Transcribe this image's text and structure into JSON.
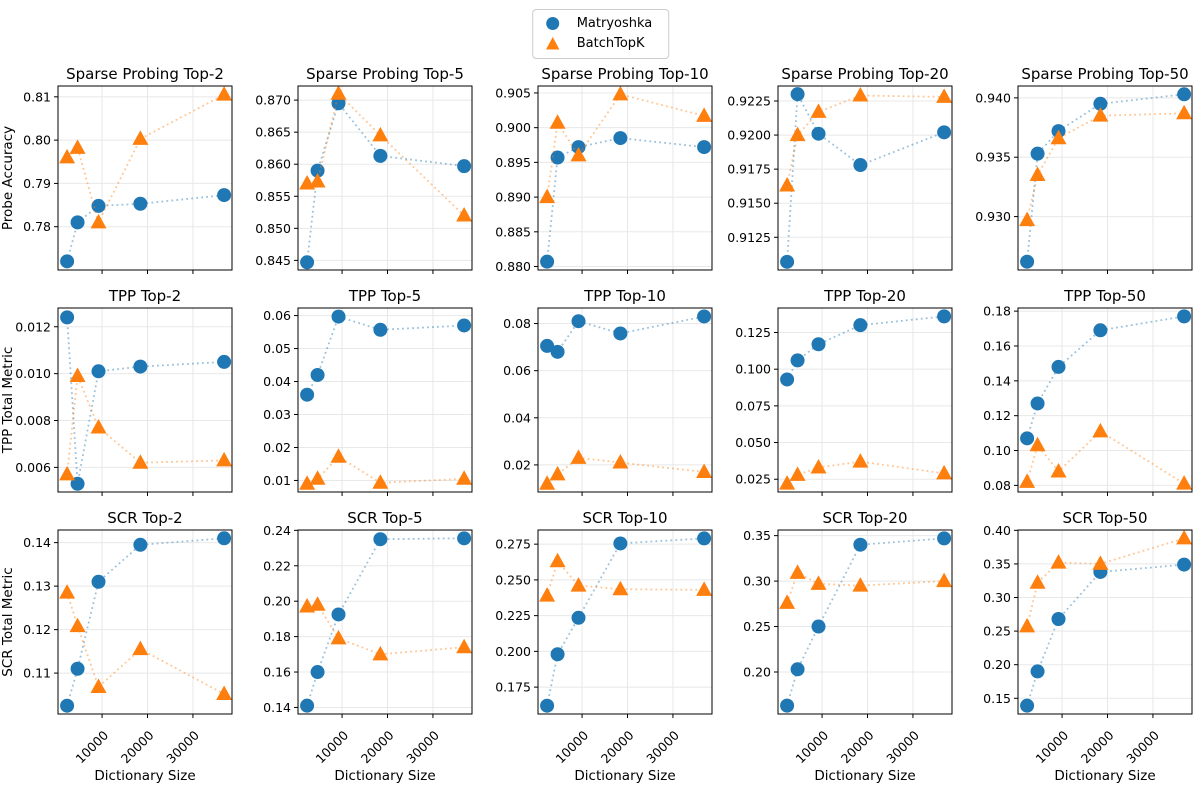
{
  "chart_data": {
    "type": "scatter",
    "description": "3x5 grid of scatter plots with dotted connecting lines comparing SAE variants across dictionary sizes",
    "x_label": "Dictionary Size",
    "x_ticks": [
      10000,
      20000,
      30000
    ],
    "x_values": [
      2304,
      4608,
      9216,
      18432,
      36864
    ],
    "xlim": [
      300,
      38600
    ],
    "row_y_labels": [
      "Probe Accuracy",
      "TPP Total Metric",
      "SCR Total Metric"
    ],
    "legend": {
      "position": "top-center",
      "items": [
        {
          "label": "Matryoshka",
          "marker": "circle",
          "color": "#1f77b4"
        },
        {
          "label": "BatchTopK",
          "marker": "triangle",
          "color": "#ff7f0e"
        }
      ]
    },
    "subplots": [
      {
        "title": "Sparse Probing Top-2",
        "ylim": [
          0.77,
          0.8125
        ],
        "y_ticks": [
          "0.78",
          "0.79",
          "0.80",
          "0.81"
        ],
        "series": [
          {
            "name": "Matryoshka",
            "values": [
              0.772,
              0.781,
              0.7848,
              0.7853,
              0.7873
            ]
          },
          {
            "name": "BatchTopK",
            "values": [
              0.796,
              0.7982,
              0.781,
              0.8003,
              0.8105
            ]
          }
        ]
      },
      {
        "title": "Sparse Probing Top-5",
        "ylim": [
          0.8435,
          0.8722
        ],
        "y_ticks": [
          "0.845",
          "0.850",
          "0.855",
          "0.860",
          "0.865",
          "0.870"
        ],
        "series": [
          {
            "name": "Matryoshka",
            "values": [
              0.8447,
              0.859,
              0.8695,
              0.8613,
              0.8597
            ]
          },
          {
            "name": "BatchTopK",
            "values": [
              0.857,
              0.8573,
              0.871,
              0.8645,
              0.852
            ]
          }
        ]
      },
      {
        "title": "Sparse Probing Top-10",
        "ylim": [
          0.8795,
          0.906
        ],
        "y_ticks": [
          "0.880",
          "0.885",
          "0.890",
          "0.895",
          "0.900",
          "0.905"
        ],
        "series": [
          {
            "name": "Matryoshka",
            "values": [
              0.8807,
              0.8957,
              0.8972,
              0.8985,
              0.8972
            ]
          },
          {
            "name": "BatchTopK",
            "values": [
              0.89,
              0.9007,
              0.896,
              0.9048,
              0.9017
            ]
          }
        ]
      },
      {
        "title": "Sparse Probing Top-20",
        "ylim": [
          0.9101,
          0.9236
        ],
        "y_ticks": [
          "0.9125",
          "0.9150",
          "0.9175",
          "0.9200",
          "0.9225"
        ],
        "series": [
          {
            "name": "Matryoshka",
            "values": [
              0.9107,
              0.923,
              0.9201,
              0.9178,
              0.9202
            ]
          },
          {
            "name": "BatchTopK",
            "values": [
              0.9163,
              0.92,
              0.9217,
              0.9229,
              0.9228
            ]
          }
        ]
      },
      {
        "title": "Sparse Probing Top-50",
        "ylim": [
          0.9255,
          0.941
        ],
        "y_ticks": [
          "0.930",
          "0.935",
          "0.940"
        ],
        "series": [
          {
            "name": "Matryoshka",
            "values": [
              0.9262,
              0.9353,
              0.9372,
              0.9395,
              0.9403
            ]
          },
          {
            "name": "BatchTopK",
            "values": [
              0.9297,
              0.9335,
              0.9366,
              0.9385,
              0.9387
            ]
          }
        ]
      },
      {
        "title": "TPP Top-2",
        "ylim": [
          0.00495,
          0.0128
        ],
        "y_ticks": [
          "0.006",
          "0.008",
          "0.010",
          "0.012"
        ],
        "series": [
          {
            "name": "Matryoshka",
            "values": [
              0.0124,
              0.0053,
              0.0101,
              0.0103,
              0.0105
            ]
          },
          {
            "name": "BatchTopK",
            "values": [
              0.0057,
              0.0099,
              0.0077,
              0.0062,
              0.0063
            ]
          }
        ]
      },
      {
        "title": "TPP Top-5",
        "ylim": [
          0.0065,
          0.0623
        ],
        "y_ticks": [
          "0.01",
          "0.02",
          "0.03",
          "0.04",
          "0.05",
          "0.06"
        ],
        "series": [
          {
            "name": "Matryoshka",
            "values": [
              0.036,
              0.042,
              0.0597,
              0.0557,
              0.057
            ]
          },
          {
            "name": "BatchTopK",
            "values": [
              0.009,
              0.0105,
              0.0172,
              0.0093,
              0.0105
            ]
          }
        ]
      },
      {
        "title": "TPP Top-10",
        "ylim": [
          0.0085,
          0.0866
        ],
        "y_ticks": [
          "0.02",
          "0.04",
          "0.06",
          "0.08"
        ],
        "series": [
          {
            "name": "Matryoshka",
            "values": [
              0.0705,
              0.068,
              0.081,
              0.0758,
              0.083
            ]
          },
          {
            "name": "BatchTopK",
            "values": [
              0.012,
              0.016,
              0.023,
              0.021,
              0.017
            ]
          }
        ]
      },
      {
        "title": "TPP Top-20",
        "ylim": [
          0.0163,
          0.1417
        ],
        "y_ticks": [
          "0.025",
          "0.050",
          "0.075",
          "0.100",
          "0.125"
        ],
        "series": [
          {
            "name": "Matryoshka",
            "values": [
              0.093,
              0.106,
              0.117,
              0.13,
              0.136
            ]
          },
          {
            "name": "BatchTopK",
            "values": [
              0.022,
              0.028,
              0.033,
              0.037,
              0.029
            ]
          }
        ]
      },
      {
        "title": "TPP Top-50",
        "ylim": [
          0.0762,
          0.1818
        ],
        "y_ticks": [
          "0.08",
          "0.10",
          "0.12",
          "0.14",
          "0.16",
          "0.18"
        ],
        "series": [
          {
            "name": "Matryoshka",
            "values": [
              0.107,
              0.127,
              0.148,
              0.169,
              0.177
            ]
          },
          {
            "name": "BatchTopK",
            "values": [
              0.082,
              0.103,
              0.088,
              0.111,
              0.081
            ]
          }
        ]
      },
      {
        "title": "SCR Top-2",
        "ylim": [
          0.1006,
          0.1429
        ],
        "y_ticks": [
          "0.11",
          "0.12",
          "0.13",
          "0.14"
        ],
        "series": [
          {
            "name": "Matryoshka",
            "values": [
              0.1025,
              0.111,
              0.131,
              0.1395,
              0.141
            ]
          },
          {
            "name": "BatchTopK",
            "values": [
              0.1285,
              0.1208,
              0.1068,
              0.1155,
              0.1052
            ]
          }
        ]
      },
      {
        "title": "SCR Top-5",
        "ylim": [
          0.1363,
          0.2402
        ],
        "y_ticks": [
          "0.14",
          "0.16",
          "0.18",
          "0.20",
          "0.22",
          "0.24"
        ],
        "series": [
          {
            "name": "Matryoshka",
            "values": [
              0.141,
              0.16,
              0.1925,
              0.235,
              0.2355
            ]
          },
          {
            "name": "BatchTopK",
            "values": [
              0.197,
              0.198,
              0.179,
              0.17,
              0.174
            ]
          }
        ]
      },
      {
        "title": "SCR Top-10",
        "ylim": [
          0.1562,
          0.2849
        ],
        "y_ticks": [
          "0.175",
          "0.200",
          "0.225",
          "0.250",
          "0.275"
        ],
        "series": [
          {
            "name": "Matryoshka",
            "values": [
              0.162,
              0.198,
              0.2235,
              0.2755,
              0.279
            ]
          },
          {
            "name": "BatchTopK",
            "values": [
              0.239,
              0.263,
              0.246,
              0.2435,
              0.243
            ]
          }
        ]
      },
      {
        "title": "SCR Top-20",
        "ylim": [
          0.1538,
          0.3562
        ],
        "y_ticks": [
          "0.20",
          "0.25",
          "0.30",
          "0.35"
        ],
        "series": [
          {
            "name": "Matryoshka",
            "values": [
              0.163,
              0.203,
              0.25,
              0.34,
              0.347
            ]
          },
          {
            "name": "BatchTopK",
            "values": [
              0.276,
              0.309,
              0.297,
              0.295,
              0.3
            ]
          }
        ]
      },
      {
        "title": "SCR Top-50",
        "ylim": [
          0.1266,
          0.4005
        ],
        "y_ticks": [
          "0.15",
          "0.20",
          "0.25",
          "0.30",
          "0.35",
          "0.40"
        ],
        "series": [
          {
            "name": "Matryoshka",
            "values": [
              0.139,
              0.19,
              0.268,
              0.338,
              0.349
            ]
          },
          {
            "name": "BatchTopK",
            "values": [
              0.257,
              0.322,
              0.352,
              0.35,
              0.388
            ]
          }
        ]
      }
    ],
    "style": {
      "grid_color": "#e8e8e8",
      "spine_color": "#000000",
      "line_style": "dotted",
      "line_opacity": 0.45
    }
  }
}
